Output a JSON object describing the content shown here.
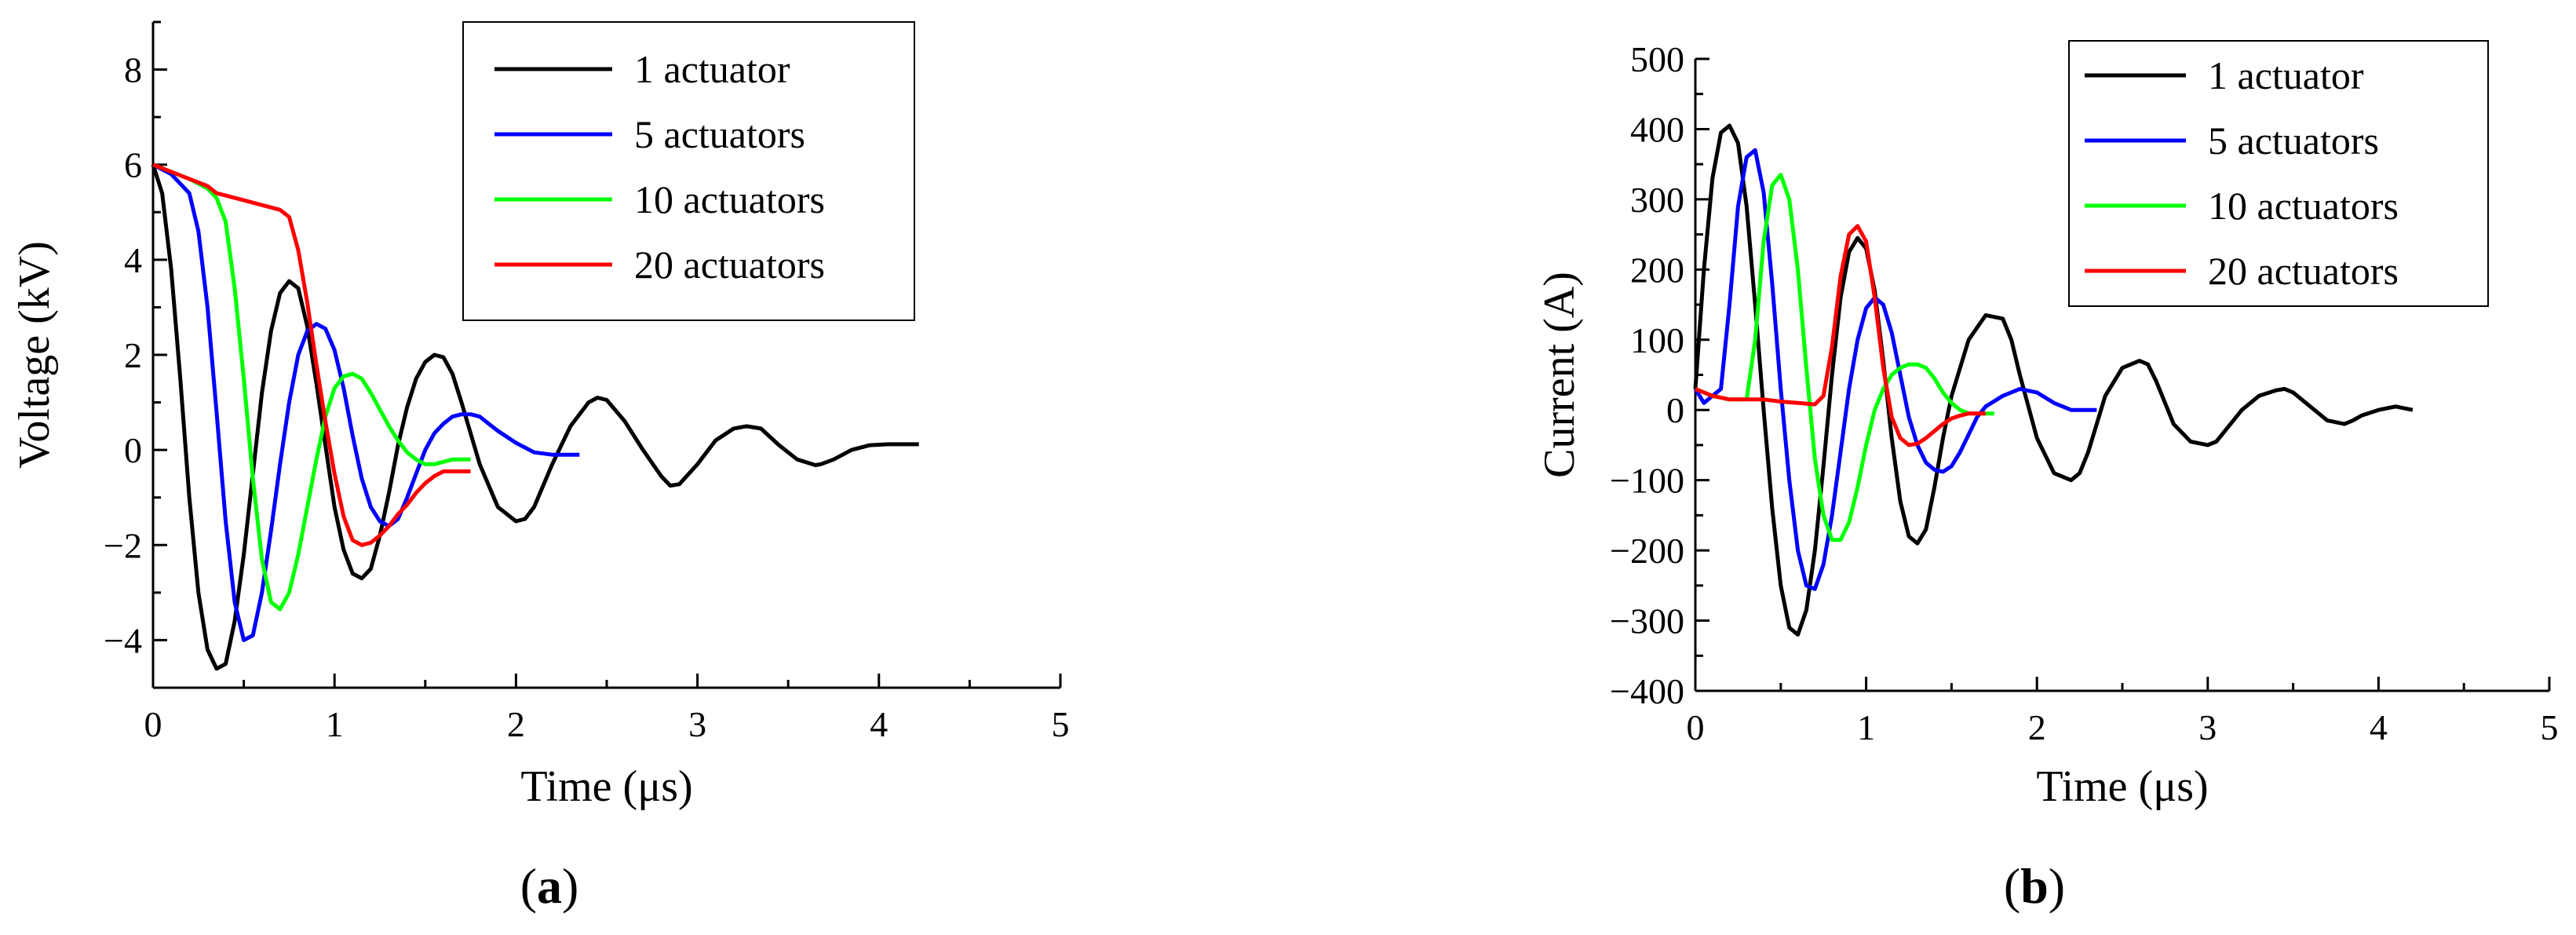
{
  "panel_labels": [
    {
      "open": "(",
      "letter": "a",
      "close": ")"
    },
    {
      "open": "(",
      "letter": "b",
      "close": ")"
    }
  ],
  "colors": {
    "1 actuator": "#000000",
    "5 actuators": "#0000ff",
    "10 actuators": "#00ff00",
    "20 actuators": "#ff0000"
  },
  "chart_data": [
    {
      "type": "line",
      "xlabel": "Time (μs)",
      "ylabel": "Voltage (kV)",
      "xlim": [
        0,
        5
      ],
      "ylim": [
        -5,
        9
      ],
      "xticks": [
        0,
        1,
        2,
        3,
        4,
        5
      ],
      "yticks": [
        -4,
        -2,
        0,
        2,
        4,
        6,
        8
      ],
      "grid": false,
      "legend_position": "top-right",
      "series": [
        {
          "name": "1 actuator",
          "color": "#000000",
          "x": [
            0,
            0.05,
            0.1,
            0.15,
            0.2,
            0.25,
            0.3,
            0.35,
            0.4,
            0.45,
            0.5,
            0.55,
            0.6,
            0.65,
            0.7,
            0.75,
            0.8,
            0.85,
            0.9,
            0.95,
            1.0,
            1.05,
            1.1,
            1.15,
            1.2,
            1.25,
            1.3,
            1.35,
            1.4,
            1.45,
            1.5,
            1.55,
            1.6,
            1.65,
            1.7,
            1.8,
            1.9,
            2.0,
            2.05,
            2.1,
            2.2,
            2.3,
            2.4,
            2.45,
            2.5,
            2.6,
            2.7,
            2.8,
            2.85,
            2.9,
            3.0,
            3.1,
            3.2,
            3.27,
            3.35,
            3.45,
            3.55,
            3.65,
            3.68,
            3.75,
            3.85,
            3.95,
            4.05,
            4.15,
            4.22
          ],
          "y": [
            6.0,
            5.4,
            3.8,
            1.5,
            -1.0,
            -3.0,
            -4.2,
            -4.6,
            -4.5,
            -3.6,
            -2.2,
            -0.5,
            1.2,
            2.5,
            3.3,
            3.55,
            3.4,
            2.6,
            1.4,
            0.1,
            -1.2,
            -2.1,
            -2.6,
            -2.7,
            -2.5,
            -1.8,
            -0.9,
            0.1,
            0.9,
            1.5,
            1.85,
            2.0,
            1.95,
            1.6,
            1.0,
            -0.3,
            -1.2,
            -1.5,
            -1.45,
            -1.2,
            -0.3,
            0.5,
            1.0,
            1.1,
            1.05,
            0.6,
            0.0,
            -0.55,
            -0.75,
            -0.72,
            -0.3,
            0.2,
            0.45,
            0.5,
            0.45,
            0.1,
            -0.2,
            -0.32,
            -0.3,
            -0.2,
            0.0,
            0.1,
            0.12,
            0.12,
            0.12
          ]
        },
        {
          "name": "5 actuators",
          "color": "#0000ff",
          "x": [
            0,
            0.1,
            0.2,
            0.25,
            0.3,
            0.35,
            0.4,
            0.45,
            0.5,
            0.55,
            0.6,
            0.65,
            0.7,
            0.75,
            0.8,
            0.85,
            0.9,
            0.95,
            1.0,
            1.05,
            1.1,
            1.15,
            1.2,
            1.25,
            1.3,
            1.35,
            1.4,
            1.45,
            1.5,
            1.55,
            1.6,
            1.65,
            1.7,
            1.75,
            1.8,
            1.85,
            1.9,
            2.0,
            2.1,
            2.2,
            2.3,
            2.35
          ],
          "y": [
            6.0,
            5.8,
            5.4,
            4.6,
            3.0,
            0.8,
            -1.5,
            -3.2,
            -4.0,
            -3.9,
            -3.0,
            -1.7,
            -0.3,
            1.0,
            2.0,
            2.5,
            2.65,
            2.55,
            2.1,
            1.3,
            0.3,
            -0.6,
            -1.2,
            -1.5,
            -1.6,
            -1.45,
            -1.0,
            -0.5,
            0.0,
            0.35,
            0.55,
            0.7,
            0.75,
            0.75,
            0.7,
            0.55,
            0.4,
            0.15,
            -0.05,
            -0.1,
            -0.1,
            -0.1
          ]
        },
        {
          "name": "10 actuators",
          "color": "#00ff00",
          "x": [
            0,
            0.1,
            0.2,
            0.3,
            0.35,
            0.4,
            0.45,
            0.5,
            0.55,
            0.6,
            0.65,
            0.7,
            0.75,
            0.8,
            0.85,
            0.9,
            0.95,
            1.0,
            1.05,
            1.1,
            1.15,
            1.2,
            1.25,
            1.3,
            1.35,
            1.4,
            1.45,
            1.5,
            1.55,
            1.6,
            1.65,
            1.7,
            1.75
          ],
          "y": [
            6.0,
            5.85,
            5.7,
            5.5,
            5.3,
            4.8,
            3.4,
            1.5,
            -0.6,
            -2.3,
            -3.2,
            -3.35,
            -3.0,
            -2.2,
            -1.2,
            -0.2,
            0.7,
            1.3,
            1.55,
            1.6,
            1.5,
            1.2,
            0.85,
            0.5,
            0.2,
            -0.05,
            -0.2,
            -0.3,
            -0.3,
            -0.25,
            -0.2,
            -0.2,
            -0.2
          ]
        },
        {
          "name": "20 actuators",
          "color": "#ff0000",
          "x": [
            0,
            0.1,
            0.2,
            0.3,
            0.35,
            0.4,
            0.5,
            0.6,
            0.7,
            0.75,
            0.8,
            0.85,
            0.9,
            0.95,
            1.0,
            1.05,
            1.1,
            1.15,
            1.2,
            1.25,
            1.3,
            1.35,
            1.4,
            1.45,
            1.5,
            1.55,
            1.6,
            1.65,
            1.7,
            1.75
          ],
          "y": [
            6.0,
            5.85,
            5.7,
            5.55,
            5.4,
            5.35,
            5.25,
            5.15,
            5.05,
            4.9,
            4.2,
            3.1,
            1.8,
            0.6,
            -0.5,
            -1.4,
            -1.9,
            -2.0,
            -1.95,
            -1.8,
            -1.6,
            -1.35,
            -1.15,
            -0.9,
            -0.7,
            -0.55,
            -0.45,
            -0.45,
            -0.45,
            -0.45
          ]
        }
      ]
    },
    {
      "type": "line",
      "xlabel": "Time (μs)",
      "ylabel": "Current (A)",
      "xlim": [
        0,
        5
      ],
      "ylim": [
        -400,
        500
      ],
      "xticks": [
        0,
        1,
        2,
        3,
        4,
        5
      ],
      "yticks": [
        -400,
        -300,
        -200,
        -100,
        0,
        100,
        200,
        300,
        400,
        500
      ],
      "grid": false,
      "legend_position": "top-right",
      "series": [
        {
          "name": "1 actuator",
          "color": "#000000",
          "x": [
            0,
            0.05,
            0.1,
            0.15,
            0.2,
            0.25,
            0.3,
            0.35,
            0.4,
            0.45,
            0.5,
            0.55,
            0.6,
            0.65,
            0.7,
            0.75,
            0.8,
            0.85,
            0.9,
            0.95,
            1.0,
            1.05,
            1.1,
            1.15,
            1.2,
            1.25,
            1.3,
            1.35,
            1.4,
            1.45,
            1.5,
            1.6,
            1.7,
            1.8,
            1.85,
            1.9,
            2.0,
            2.1,
            2.2,
            2.25,
            2.3,
            2.4,
            2.5,
            2.6,
            2.65,
            2.7,
            2.8,
            2.9,
            3.0,
            3.05,
            3.1,
            3.2,
            3.3,
            3.4,
            3.45,
            3.5,
            3.6,
            3.7,
            3.8,
            3.85,
            3.9,
            4.0,
            4.1,
            4.2
          ],
          "y": [
            30,
            200,
            330,
            395,
            405,
            380,
            290,
            150,
            0,
            -140,
            -250,
            -310,
            -320,
            -285,
            -200,
            -80,
            50,
            160,
            225,
            245,
            230,
            170,
            70,
            -40,
            -130,
            -180,
            -190,
            -170,
            -110,
            -40,
            20,
            100,
            135,
            130,
            100,
            50,
            -40,
            -90,
            -100,
            -90,
            -60,
            20,
            60,
            70,
            65,
            40,
            -20,
            -45,
            -50,
            -45,
            -30,
            0,
            20,
            28,
            30,
            25,
            5,
            -15,
            -20,
            -15,
            -8,
            0,
            5,
            0
          ]
        },
        {
          "name": "5 actuators",
          "color": "#0000ff",
          "x": [
            0,
            0.05,
            0.1,
            0.15,
            0.2,
            0.25,
            0.3,
            0.35,
            0.4,
            0.45,
            0.5,
            0.55,
            0.6,
            0.65,
            0.7,
            0.75,
            0.8,
            0.85,
            0.9,
            0.95,
            1.0,
            1.05,
            1.1,
            1.15,
            1.2,
            1.25,
            1.3,
            1.35,
            1.4,
            1.45,
            1.5,
            1.55,
            1.6,
            1.65,
            1.7,
            1.8,
            1.9,
            2.0,
            2.1,
            2.2,
            2.3,
            2.35
          ],
          "y": [
            30,
            10,
            20,
            30,
            150,
            290,
            360,
            370,
            310,
            180,
            30,
            -100,
            -200,
            -250,
            -255,
            -220,
            -150,
            -60,
            30,
            100,
            145,
            160,
            150,
            110,
            50,
            -10,
            -50,
            -75,
            -85,
            -88,
            -80,
            -60,
            -35,
            -10,
            5,
            20,
            30,
            25,
            10,
            0,
            0,
            0
          ]
        },
        {
          "name": "10 actuators",
          "color": "#00ff00",
          "x": [
            0,
            0.1,
            0.2,
            0.3,
            0.35,
            0.4,
            0.45,
            0.5,
            0.55,
            0.6,
            0.65,
            0.7,
            0.75,
            0.8,
            0.85,
            0.9,
            0.95,
            1.0,
            1.05,
            1.1,
            1.15,
            1.2,
            1.25,
            1.3,
            1.35,
            1.4,
            1.45,
            1.5,
            1.55,
            1.6,
            1.65,
            1.7,
            1.75
          ],
          "y": [
            30,
            20,
            15,
            15,
            100,
            240,
            320,
            335,
            300,
            200,
            60,
            -70,
            -150,
            -185,
            -185,
            -160,
            -110,
            -50,
            0,
            30,
            50,
            60,
            65,
            65,
            60,
            45,
            25,
            10,
            0,
            -5,
            -5,
            -5,
            -5
          ]
        },
        {
          "name": "20 actuators",
          "color": "#ff0000",
          "x": [
            0,
            0.1,
            0.2,
            0.3,
            0.4,
            0.5,
            0.6,
            0.7,
            0.75,
            0.8,
            0.85,
            0.9,
            0.95,
            1.0,
            1.05,
            1.1,
            1.15,
            1.2,
            1.25,
            1.3,
            1.35,
            1.4,
            1.45,
            1.5,
            1.55,
            1.6,
            1.65,
            1.7
          ],
          "y": [
            30,
            20,
            15,
            15,
            15,
            12,
            10,
            8,
            20,
            90,
            190,
            250,
            262,
            240,
            160,
            60,
            -10,
            -40,
            -50,
            -48,
            -40,
            -30,
            -20,
            -12,
            -8,
            -5,
            -5,
            -5
          ]
        }
      ]
    }
  ]
}
